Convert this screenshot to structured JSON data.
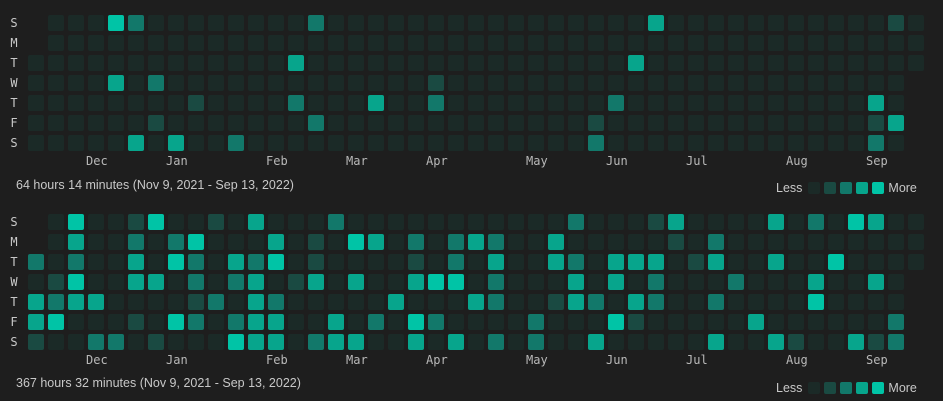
{
  "colors": {
    "background": "#1e1e1e",
    "levels": [
      "#1b2a27",
      "#1a4a42",
      "#12786a",
      "#07a58c",
      "#00c4a6"
    ]
  },
  "day_labels": [
    "S",
    "M",
    "T",
    "W",
    "T",
    "F",
    "S"
  ],
  "months": [
    {
      "label": "Dec",
      "week": 3
    },
    {
      "label": "Jan",
      "week": 7
    },
    {
      "label": "Feb",
      "week": 12
    },
    {
      "label": "Mar",
      "week": 16
    },
    {
      "label": "Apr",
      "week": 20
    },
    {
      "label": "May",
      "week": 25
    },
    {
      "label": "Jun",
      "week": 29
    },
    {
      "label": "Jul",
      "week": 33
    },
    {
      "label": "Aug",
      "week": 38
    },
    {
      "label": "Sep",
      "week": 42
    }
  ],
  "legend": {
    "less": "Less",
    "more": "More"
  },
  "panels": [
    {
      "summary": "64 hours 14 minutes (Nov 9, 2021 - Sep 13, 2022)",
      "levels": [
        [
          null,
          0,
          0,
          0,
          4,
          2,
          0,
          0,
          0,
          0,
          0,
          0,
          0,
          0,
          2,
          0,
          0,
          0,
          0,
          0,
          0,
          0,
          0,
          0,
          0,
          0,
          0,
          0,
          0,
          0,
          0,
          3,
          0,
          0,
          0,
          0,
          0,
          0,
          0,
          0,
          0,
          0,
          0,
          1,
          0
        ],
        [
          null,
          0,
          0,
          0,
          0,
          0,
          0,
          0,
          0,
          0,
          0,
          0,
          0,
          0,
          0,
          0,
          0,
          0,
          0,
          0,
          0,
          0,
          0,
          0,
          0,
          0,
          0,
          0,
          0,
          0,
          0,
          0,
          0,
          0,
          0,
          0,
          0,
          0,
          0,
          0,
          0,
          0,
          0,
          0,
          0
        ],
        [
          0,
          0,
          0,
          0,
          0,
          0,
          0,
          0,
          0,
          0,
          0,
          0,
          0,
          3,
          0,
          0,
          0,
          0,
          0,
          0,
          0,
          0,
          0,
          0,
          0,
          0,
          0,
          0,
          0,
          0,
          3,
          0,
          0,
          0,
          0,
          0,
          0,
          0,
          0,
          0,
          0,
          0,
          0,
          0,
          0
        ],
        [
          0,
          0,
          0,
          0,
          3,
          0,
          2,
          0,
          0,
          0,
          0,
          0,
          0,
          0,
          0,
          0,
          0,
          0,
          0,
          0,
          1,
          0,
          0,
          0,
          0,
          0,
          0,
          0,
          0,
          0,
          0,
          0,
          0,
          0,
          0,
          0,
          0,
          0,
          0,
          0,
          0,
          0,
          0,
          0,
          null
        ],
        [
          0,
          0,
          0,
          0,
          0,
          0,
          0,
          0,
          1,
          0,
          0,
          0,
          0,
          2,
          0,
          0,
          0,
          3,
          0,
          0,
          2,
          0,
          0,
          0,
          0,
          0,
          0,
          0,
          0,
          2,
          0,
          0,
          0,
          0,
          0,
          0,
          0,
          0,
          0,
          0,
          0,
          0,
          3,
          0,
          null
        ],
        [
          0,
          0,
          0,
          0,
          0,
          0,
          1,
          0,
          0,
          0,
          0,
          0,
          0,
          0,
          2,
          0,
          0,
          0,
          0,
          0,
          0,
          0,
          0,
          0,
          0,
          0,
          0,
          0,
          1,
          0,
          0,
          0,
          0,
          0,
          0,
          0,
          0,
          0,
          0,
          0,
          0,
          0,
          1,
          3,
          null
        ],
        [
          0,
          0,
          0,
          0,
          0,
          3,
          0,
          3,
          0,
          0,
          2,
          0,
          0,
          0,
          0,
          0,
          0,
          0,
          0,
          0,
          0,
          0,
          0,
          0,
          0,
          0,
          0,
          0,
          2,
          0,
          0,
          0,
          0,
          0,
          0,
          0,
          0,
          0,
          0,
          0,
          0,
          0,
          2,
          0,
          null
        ]
      ]
    },
    {
      "summary": "367 hours 32 minutes (Nov 9, 2021 - Sep 13, 2022)",
      "levels": [
        [
          null,
          0,
          4,
          0,
          0,
          1,
          4,
          0,
          0,
          1,
          0,
          3,
          0,
          0,
          0,
          2,
          0,
          0,
          0,
          0,
          0,
          0,
          0,
          0,
          0,
          0,
          0,
          2,
          0,
          0,
          0,
          1,
          3,
          0,
          0,
          0,
          0,
          3,
          0,
          2,
          0,
          4,
          3,
          0,
          0
        ],
        [
          null,
          0,
          3,
          0,
          0,
          2,
          0,
          2,
          4,
          0,
          0,
          0,
          3,
          0,
          1,
          0,
          4,
          3,
          0,
          2,
          0,
          2,
          3,
          2,
          0,
          0,
          3,
          0,
          0,
          0,
          0,
          0,
          1,
          0,
          2,
          0,
          0,
          0,
          0,
          0,
          0,
          0,
          0,
          0,
          0
        ],
        [
          2,
          0,
          2,
          0,
          0,
          3,
          0,
          4,
          2,
          0,
          3,
          2,
          4,
          0,
          1,
          0,
          0,
          0,
          0,
          1,
          0,
          2,
          0,
          3,
          0,
          0,
          3,
          2,
          0,
          3,
          3,
          3,
          0,
          1,
          3,
          0,
          0,
          3,
          0,
          0,
          4,
          0,
          0,
          0,
          0
        ],
        [
          0,
          1,
          4,
          0,
          0,
          3,
          3,
          0,
          2,
          0,
          2,
          3,
          0,
          1,
          3,
          0,
          3,
          0,
          0,
          3,
          4,
          4,
          0,
          2,
          0,
          0,
          0,
          3,
          0,
          3,
          0,
          2,
          0,
          0,
          0,
          2,
          0,
          0,
          0,
          3,
          0,
          0,
          3,
          0,
          null
        ],
        [
          3,
          2,
          3,
          3,
          0,
          0,
          0,
          0,
          1,
          2,
          0,
          3,
          2,
          0,
          0,
          0,
          0,
          0,
          3,
          0,
          0,
          0,
          3,
          2,
          0,
          0,
          1,
          3,
          2,
          0,
          3,
          2,
          0,
          0,
          2,
          0,
          0,
          0,
          0,
          4,
          0,
          0,
          0,
          0,
          null
        ],
        [
          3,
          4,
          0,
          0,
          0,
          1,
          0,
          4,
          2,
          0,
          2,
          3,
          3,
          0,
          0,
          3,
          0,
          2,
          0,
          4,
          2,
          0,
          0,
          0,
          0,
          2,
          0,
          0,
          0,
          4,
          1,
          0,
          0,
          0,
          0,
          0,
          3,
          0,
          0,
          0,
          0,
          0,
          0,
          2,
          null
        ],
        [
          1,
          0,
          0,
          2,
          2,
          0,
          1,
          0,
          0,
          0,
          4,
          3,
          3,
          0,
          2,
          3,
          3,
          0,
          0,
          3,
          0,
          3,
          0,
          2,
          0,
          2,
          0,
          0,
          3,
          0,
          0,
          0,
          0,
          0,
          3,
          0,
          0,
          3,
          1,
          0,
          0,
          3,
          1,
          2,
          null
        ]
      ]
    }
  ]
}
